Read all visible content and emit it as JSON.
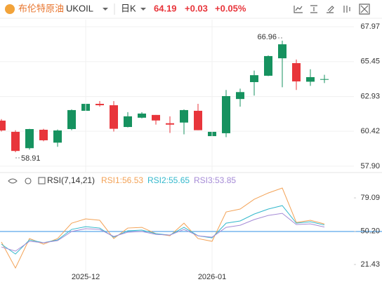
{
  "header": {
    "name": "布伦特原油",
    "symbol": "UKOIL",
    "period": "日K",
    "price": "64.19",
    "change": "+0.03",
    "change_pct": "+0.05%"
  },
  "chart_data": [
    {
      "type": "candlestick",
      "categories": [
        null,
        null,
        null,
        null,
        null,
        null,
        "2025-12",
        null,
        null,
        null,
        null,
        null,
        null,
        null,
        null,
        "2026-01",
        null,
        null,
        null,
        null,
        null,
        null,
        null,
        null
      ],
      "open": [
        61.19,
        60.38,
        59.2,
        60.53,
        59.6,
        60.58,
        61.9,
        62.4,
        62.3,
        60.73,
        61.4,
        61.6,
        61.0,
        61.05,
        61.9,
        60.07,
        60.28,
        62.75,
        63.97,
        64.43,
        65.69,
        65.34,
        64.0,
        64.17
      ],
      "high": [
        61.3,
        60.5,
        60.6,
        60.6,
        60.55,
        62.0,
        62.6,
        62.6,
        62.6,
        61.8,
        61.8,
        61.6,
        61.5,
        62.0,
        62.4,
        60.6,
        63.4,
        63.5,
        64.8,
        65.9,
        66.96,
        65.6,
        64.9,
        64.5
      ],
      "low": [
        60.4,
        58.91,
        59.1,
        59.7,
        59.3,
        60.5,
        61.8,
        62.2,
        60.4,
        60.7,
        61.35,
        60.9,
        60.3,
        60.2,
        60.5,
        60.0,
        60.0,
        62.2,
        63.0,
        64.4,
        63.6,
        63.4,
        63.7,
        63.9
      ],
      "close": [
        60.48,
        59.0,
        60.58,
        59.77,
        60.48,
        61.95,
        62.4,
        62.3,
        60.6,
        61.5,
        61.7,
        61.2,
        60.9,
        61.95,
        60.5,
        60.38,
        62.96,
        63.25,
        64.47,
        65.85,
        66.7,
        64.02,
        64.33,
        64.19
      ],
      "up_color": "#16925f",
      "down_color": "#e8353b",
      "ylim": [
        57.49,
        68.48
      ],
      "yticks": [
        {
          "value": 57.9,
          "label": "57.90"
        },
        60.42,
        62.93,
        65.45,
        67.97
      ],
      "grid": true
    },
    {
      "type": "line",
      "title": "RSI(7,14,21)",
      "categories": [
        null,
        null,
        null,
        null,
        null,
        null,
        "2025-12",
        null,
        null,
        null,
        null,
        null,
        null,
        null,
        null,
        "2026-01",
        null,
        null,
        null,
        null,
        null,
        null,
        null,
        null
      ],
      "series": [
        {
          "name": "RSI1:56.53",
          "color": "#f3a256",
          "values": [
            40.9,
            18.4,
            43.9,
            39.0,
            43.9,
            57.2,
            60.9,
            59.7,
            43.9,
            53.0,
            53.6,
            48.1,
            46.3,
            57.2,
            43.9,
            41.5,
            66.9,
            69.4,
            77.9,
            83.3,
            87.6,
            57.8,
            59.7,
            56.53
          ]
        },
        {
          "name": "RSI2:55.65",
          "color": "#33b8cc",
          "values": [
            39.0,
            30.5,
            42.7,
            40.3,
            42.7,
            51.8,
            54.2,
            53.0,
            45.1,
            50.6,
            51.2,
            48.1,
            46.9,
            53.6,
            46.3,
            44.5,
            57.2,
            59.1,
            65.1,
            69.4,
            72.4,
            57.2,
            58.4,
            55.65
          ]
        },
        {
          "name": "RSI3:53.85",
          "color": "#a58bd6",
          "values": [
            36.6,
            33.0,
            41.5,
            40.3,
            42.1,
            50.0,
            52.4,
            51.8,
            45.7,
            49.4,
            50.0,
            47.5,
            46.9,
            51.8,
            46.3,
            45.1,
            53.6,
            55.4,
            60.3,
            63.9,
            65.7,
            56.0,
            56.6,
            53.85
          ]
        }
      ],
      "ref_line": 50,
      "ref_color": "#5aa8ea",
      "ylim": [
        14.8,
        93.7
      ],
      "yticks": [
        21.43,
        {
          "value": 50.2,
          "label": "50.20"
        },
        79.09
      ]
    }
  ]
}
